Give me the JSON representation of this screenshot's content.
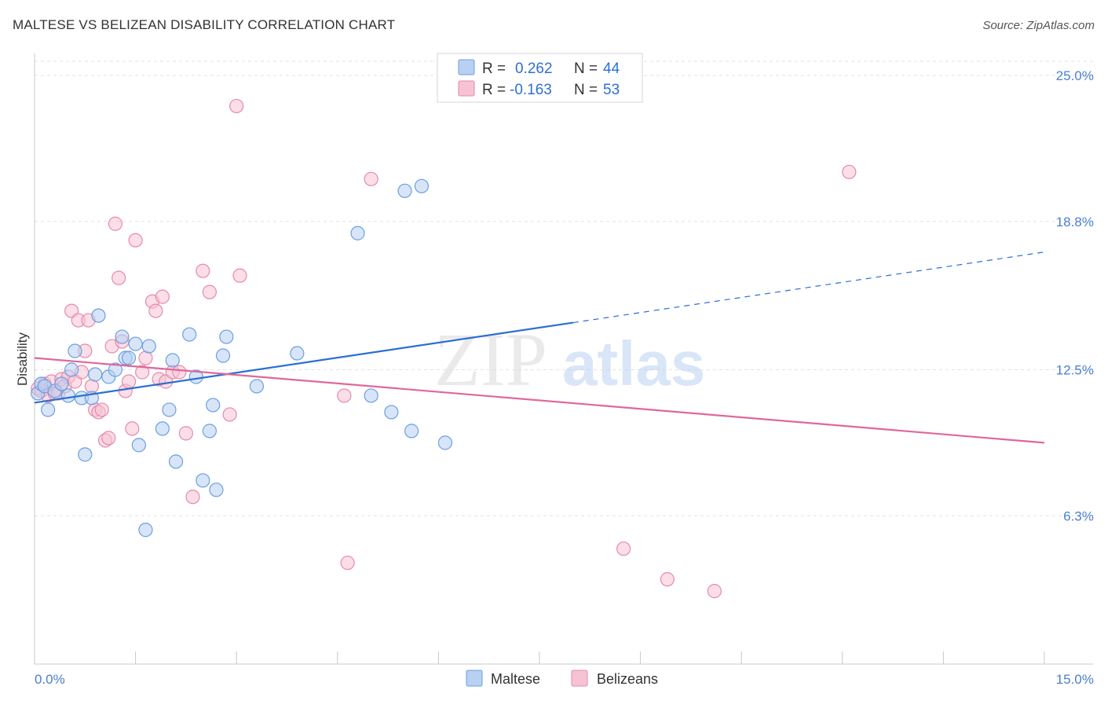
{
  "title": "MALTESE VS BELIZEAN DISABILITY CORRELATION CHART",
  "source": "Source: ZipAtlas.com",
  "watermark": {
    "zip": "ZIP",
    "atlas": "atlas"
  },
  "colors": {
    "maltese": "#6a9fe0",
    "maltese_fill": "#b8d0f2",
    "maltese_line": "#2b6fd1",
    "belizeans": "#e68aaa",
    "belizeans_fill": "#f7c3d4",
    "belizeans_line": "#e0679a",
    "axis_tick": "#4a7fd0",
    "grid": "#e2e2e2"
  },
  "legend": {
    "maltese": {
      "r_label": "R = ",
      "r_value": "0.262",
      "n_label": "N = ",
      "n_value": "44"
    },
    "belizeans": {
      "r_label": "R = ",
      "r_value": "-0.163",
      "n_label": "N = ",
      "n_value": "53"
    }
  },
  "chart_data": {
    "type": "scatter",
    "title": "MALTESE VS BELIZEAN DISABILITY CORRELATION CHART",
    "xlabel": "",
    "ylabel": "Disability",
    "xlim": [
      0,
      15
    ],
    "ylim": [
      0,
      26.3
    ],
    "x_tick_labels": [
      "0.0%",
      "15.0%"
    ],
    "y_ticks": [
      6.3,
      12.5,
      18.8,
      25.0
    ],
    "y_tick_labels": [
      "6.3%",
      "12.5%",
      "18.8%",
      "25.0%"
    ],
    "grid": true,
    "legend_position": "top-center",
    "series": [
      {
        "name": "Maltese",
        "points": [
          [
            0.05,
            11.5
          ],
          [
            0.1,
            11.9
          ],
          [
            0.15,
            11.8
          ],
          [
            0.2,
            10.8
          ],
          [
            0.3,
            11.6
          ],
          [
            0.4,
            11.9
          ],
          [
            0.5,
            11.4
          ],
          [
            0.55,
            12.5
          ],
          [
            0.6,
            13.3
          ],
          [
            0.7,
            11.3
          ],
          [
            0.75,
            8.9
          ],
          [
            0.85,
            11.3
          ],
          [
            0.9,
            12.3
          ],
          [
            0.95,
            14.8
          ],
          [
            1.1,
            12.2
          ],
          [
            1.2,
            12.5
          ],
          [
            1.3,
            13.9
          ],
          [
            1.35,
            13.0
          ],
          [
            1.4,
            13.0
          ],
          [
            1.5,
            13.6
          ],
          [
            1.55,
            9.3
          ],
          [
            1.65,
            5.7
          ],
          [
            1.7,
            13.5
          ],
          [
            1.9,
            10.0
          ],
          [
            2.0,
            10.8
          ],
          [
            2.05,
            12.9
          ],
          [
            2.1,
            8.6
          ],
          [
            2.3,
            14.0
          ],
          [
            2.4,
            12.2
          ],
          [
            2.5,
            7.8
          ],
          [
            2.6,
            9.9
          ],
          [
            2.65,
            11.0
          ],
          [
            2.7,
            7.4
          ],
          [
            2.8,
            13.1
          ],
          [
            2.85,
            13.9
          ],
          [
            3.3,
            11.8
          ],
          [
            3.9,
            13.2
          ],
          [
            4.8,
            18.3
          ],
          [
            5.0,
            11.4
          ],
          [
            5.3,
            10.7
          ],
          [
            5.5,
            20.1
          ],
          [
            5.6,
            9.9
          ],
          [
            5.75,
            20.3
          ],
          [
            6.1,
            9.4
          ]
        ],
        "trend": {
          "x": [
            0,
            8.0
          ],
          "y": [
            11.1,
            14.5
          ]
        },
        "trend_extension": {
          "x": [
            8.0,
            15
          ],
          "y": [
            14.5,
            17.5
          ]
        }
      },
      {
        "name": "Belizeans",
        "points": [
          [
            0.05,
            11.7
          ],
          [
            0.1,
            11.6
          ],
          [
            0.15,
            11.9
          ],
          [
            0.2,
            11.4
          ],
          [
            0.25,
            12.0
          ],
          [
            0.3,
            11.5
          ],
          [
            0.35,
            11.5
          ],
          [
            0.4,
            12.1
          ],
          [
            0.45,
            11.8
          ],
          [
            0.5,
            12.2
          ],
          [
            0.55,
            15.0
          ],
          [
            0.6,
            12.0
          ],
          [
            0.65,
            14.6
          ],
          [
            0.7,
            12.4
          ],
          [
            0.75,
            13.3
          ],
          [
            0.8,
            14.6
          ],
          [
            0.85,
            11.8
          ],
          [
            0.9,
            10.8
          ],
          [
            0.95,
            10.7
          ],
          [
            1.0,
            10.8
          ],
          [
            1.05,
            9.5
          ],
          [
            1.1,
            9.6
          ],
          [
            1.15,
            13.5
          ],
          [
            1.2,
            18.7
          ],
          [
            1.25,
            16.4
          ],
          [
            1.3,
            13.7
          ],
          [
            1.35,
            11.6
          ],
          [
            1.4,
            12.0
          ],
          [
            1.45,
            10.0
          ],
          [
            1.5,
            18.0
          ],
          [
            1.6,
            12.4
          ],
          [
            1.65,
            13.0
          ],
          [
            1.75,
            15.4
          ],
          [
            1.8,
            15.0
          ],
          [
            1.85,
            12.1
          ],
          [
            1.9,
            15.6
          ],
          [
            1.95,
            12.0
          ],
          [
            2.05,
            12.4
          ],
          [
            2.15,
            12.4
          ],
          [
            2.25,
            9.8
          ],
          [
            2.35,
            7.1
          ],
          [
            2.5,
            16.7
          ],
          [
            2.6,
            15.8
          ],
          [
            2.9,
            10.6
          ],
          [
            3.05,
            16.5
          ],
          [
            3.0,
            23.7
          ],
          [
            4.6,
            11.4
          ],
          [
            4.65,
            4.3
          ],
          [
            5.0,
            20.6
          ],
          [
            8.75,
            4.9
          ],
          [
            9.4,
            3.6
          ],
          [
            10.1,
            3.1
          ],
          [
            12.1,
            20.9
          ]
        ],
        "trend": {
          "x": [
            0,
            15
          ],
          "y": [
            13.0,
            9.4
          ]
        }
      }
    ]
  }
}
